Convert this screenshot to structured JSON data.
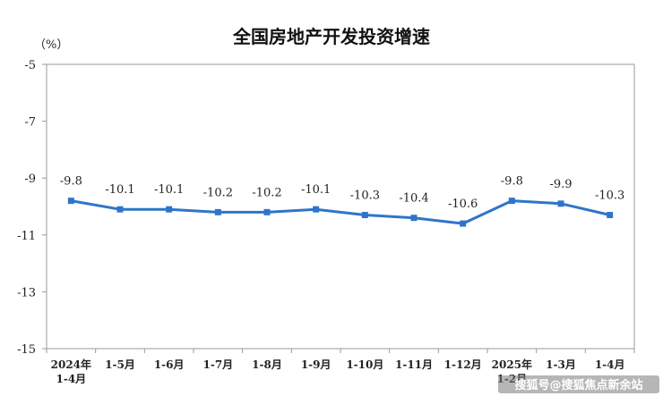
{
  "chart_data": {
    "type": "line",
    "title": "全国房地产开发投资增速",
    "unit_label": "（%）",
    "categories": [
      [
        "2024年",
        "1-4月"
      ],
      [
        "1-5月"
      ],
      [
        "1-6月"
      ],
      [
        "1-7月"
      ],
      [
        "1-8月"
      ],
      [
        "1-9月"
      ],
      [
        "1-10月"
      ],
      [
        "1-11月"
      ],
      [
        "1-12月"
      ],
      [
        "2025年",
        "1-2月"
      ],
      [
        "1-3月"
      ],
      [
        "1-4月"
      ]
    ],
    "values": [
      -9.8,
      -10.1,
      -10.1,
      -10.2,
      -10.2,
      -10.1,
      -10.3,
      -10.4,
      -10.6,
      -9.8,
      -9.9,
      -10.3
    ],
    "data_labels": [
      "-9.8",
      "-10.1",
      "-10.1",
      "-10.2",
      "-10.2",
      "-10.1",
      "-10.3",
      "-10.4",
      "-10.6",
      "-9.8",
      "-9.9",
      "-10.3"
    ],
    "yticks": [
      "-5",
      "-7",
      "-9",
      "-11",
      "-13",
      "-15"
    ],
    "ylim": [
      -15,
      -5
    ],
    "grid": false,
    "line_color": "#2e75c9"
  },
  "watermark": "搜狐号@搜狐焦点新余站"
}
